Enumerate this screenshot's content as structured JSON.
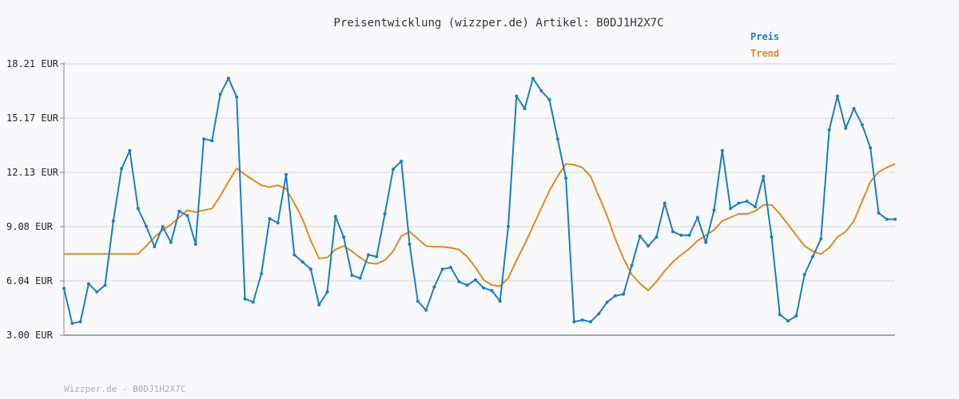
{
  "chart_data": {
    "type": "line",
    "title": "Preisentwicklung (wizzper.de) Artikel: B0DJ1H2X7C",
    "footer": "Wizzper.de - B0DJ1H2X7C",
    "y_ticks": [
      "3.00 EUR",
      "6.04 EUR",
      "9.08 EUR",
      "12.13 EUR",
      "15.17 EUR",
      "18.21 EUR"
    ],
    "y_tick_values": [
      3.0,
      6.04,
      9.08,
      12.13,
      15.17,
      18.21
    ],
    "ylim": [
      3.0,
      18.21
    ],
    "grid": true,
    "legend_position": "top-right",
    "series": [
      {
        "name": "Preis",
        "color": "#1a7fc1",
        "values": [
          5.62,
          3.66,
          3.75,
          5.88,
          5.42,
          5.8,
          9.4,
          12.33,
          13.35,
          10.1,
          9.1,
          7.96,
          9.08,
          8.2,
          9.95,
          9.7,
          8.1,
          14.0,
          13.9,
          16.5,
          17.4,
          16.35,
          5.03,
          4.85,
          6.45,
          9.53,
          9.3,
          12.0,
          7.5,
          7.1,
          6.7,
          4.7,
          5.42,
          9.65,
          8.5,
          6.35,
          6.2,
          7.5,
          7.4,
          9.8,
          12.3,
          12.75,
          8.1,
          4.9,
          4.4,
          5.7,
          6.7,
          6.8,
          6.0,
          5.8,
          6.1,
          5.65,
          5.5,
          4.9,
          9.1,
          16.4,
          15.7,
          17.4,
          16.7,
          16.2,
          14.0,
          11.8,
          3.75,
          3.85,
          3.75,
          4.2,
          4.85,
          5.2,
          5.3,
          6.9,
          8.55,
          8.0,
          8.5,
          10.4,
          8.8,
          8.6,
          8.6,
          9.6,
          8.2,
          10.0,
          13.35,
          10.1,
          10.4,
          10.5,
          10.2,
          11.9,
          8.5,
          4.15,
          3.8,
          4.08,
          6.4,
          7.4,
          8.4,
          14.5,
          16.4,
          14.6,
          15.7,
          14.8,
          13.5,
          9.85,
          9.5,
          9.5
        ]
      },
      {
        "name": "Trend",
        "color": "#e08a1e",
        "values": [
          7.55,
          7.55,
          7.55,
          7.55,
          7.55,
          7.55,
          7.55,
          7.55,
          7.55,
          7.55,
          8.0,
          8.5,
          8.9,
          9.2,
          9.6,
          10.0,
          9.9,
          10.0,
          10.1,
          10.8,
          11.6,
          12.35,
          12.0,
          11.7,
          11.4,
          11.3,
          11.4,
          11.2,
          10.4,
          9.5,
          8.3,
          7.3,
          7.35,
          7.8,
          8.0,
          7.7,
          7.35,
          7.05,
          7.0,
          7.2,
          7.7,
          8.55,
          8.8,
          8.4,
          8.0,
          7.95,
          7.95,
          7.9,
          7.8,
          7.4,
          6.8,
          6.1,
          5.8,
          5.75,
          6.2,
          7.2,
          8.1,
          9.1,
          10.1,
          11.1,
          11.9,
          12.6,
          12.55,
          12.4,
          11.9,
          10.8,
          9.7,
          8.4,
          7.3,
          6.4,
          5.9,
          5.5,
          6.0,
          6.6,
          7.1,
          7.5,
          7.85,
          8.3,
          8.6,
          8.9,
          9.4,
          9.6,
          9.8,
          9.8,
          9.95,
          10.3,
          10.3,
          9.8,
          9.2,
          8.6,
          8.0,
          7.7,
          7.55,
          7.9,
          8.5,
          8.8,
          9.4,
          10.5,
          11.6,
          12.15,
          12.4,
          12.6
        ]
      }
    ]
  }
}
